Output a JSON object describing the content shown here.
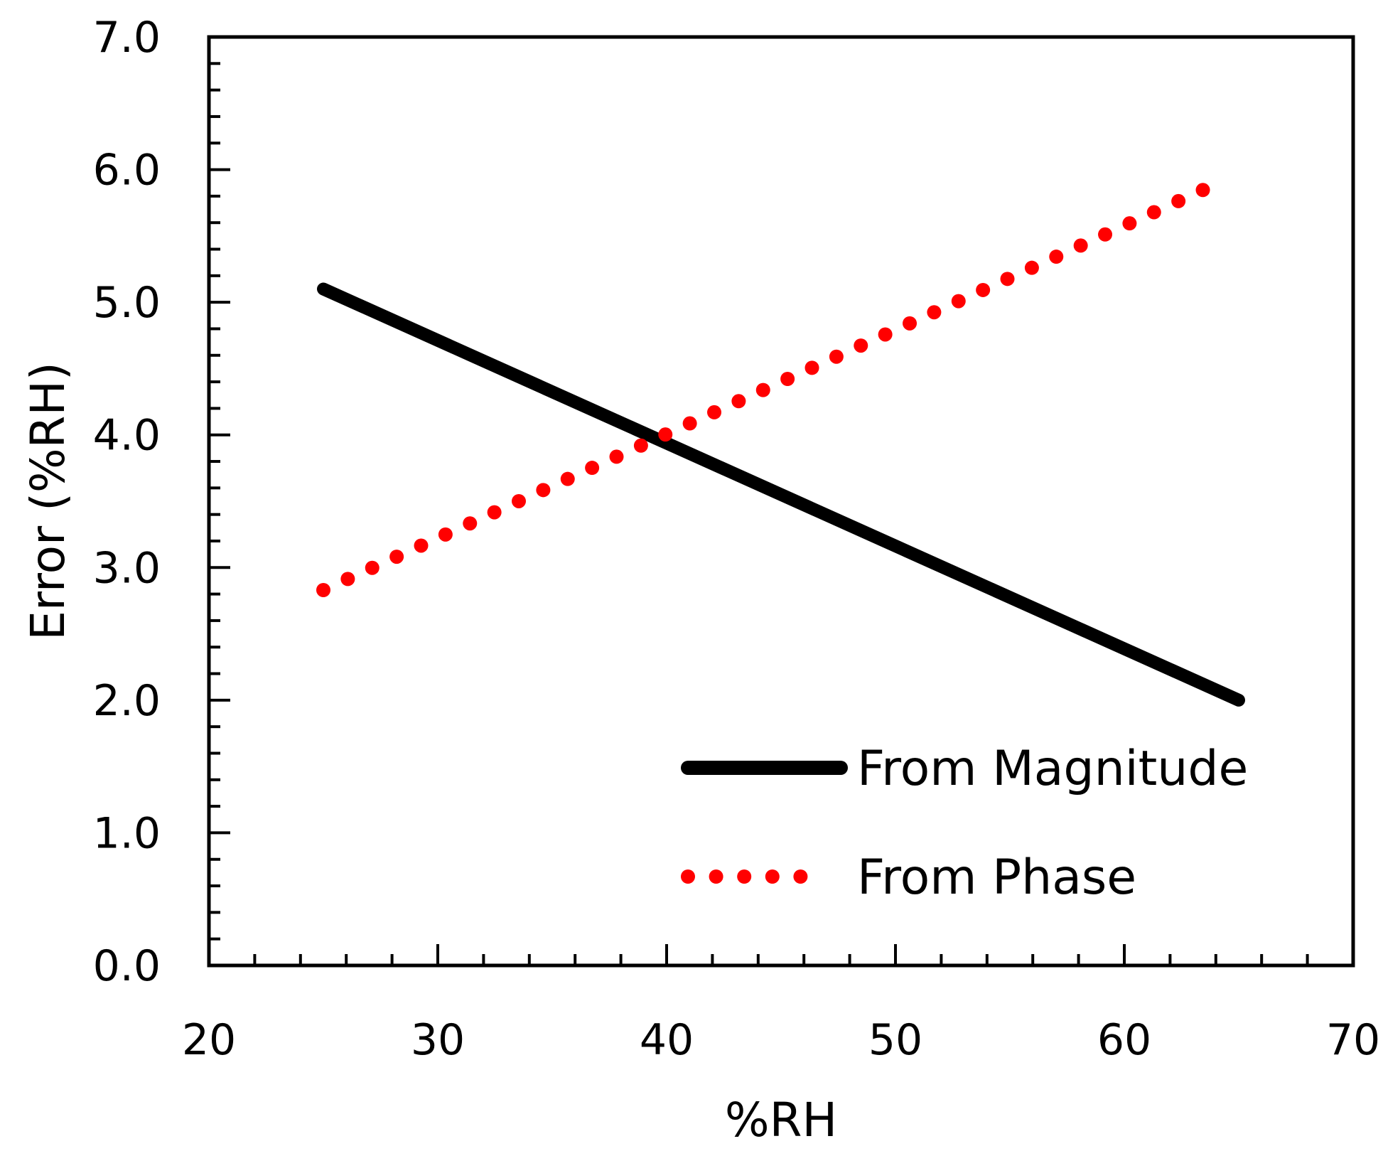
{
  "chart_data": {
    "type": "line",
    "title": "",
    "xlabel": "%RH",
    "ylabel": "Error  (%RH)",
    "xlim": [
      20,
      70
    ],
    "ylim": [
      0,
      7
    ],
    "x_ticks": [
      20,
      30,
      40,
      50,
      60,
      70
    ],
    "x_tick_labels": [
      "20",
      "30",
      "40",
      "50",
      "60",
      "70"
    ],
    "y_ticks": [
      0,
      1,
      2,
      3,
      4,
      5,
      6,
      7
    ],
    "y_tick_labels": [
      "0.0",
      "1.0",
      "2.0",
      "3.0",
      "4.0",
      "5.0",
      "6.0",
      "7.0"
    ],
    "x_minor_step": 2,
    "y_minor_step": 0.2,
    "grid": false,
    "legend_position": "bottom-right",
    "series": [
      {
        "name": "From Magnitude",
        "style": "solid",
        "color": "#000000",
        "x": [
          25,
          65
        ],
        "y": [
          5.1,
          2.0
        ]
      },
      {
        "name": "From Phase",
        "style": "dotted",
        "color": "#ff0000",
        "x": [
          25,
          64.5
        ],
        "y": [
          2.83,
          5.93
        ]
      }
    ]
  }
}
